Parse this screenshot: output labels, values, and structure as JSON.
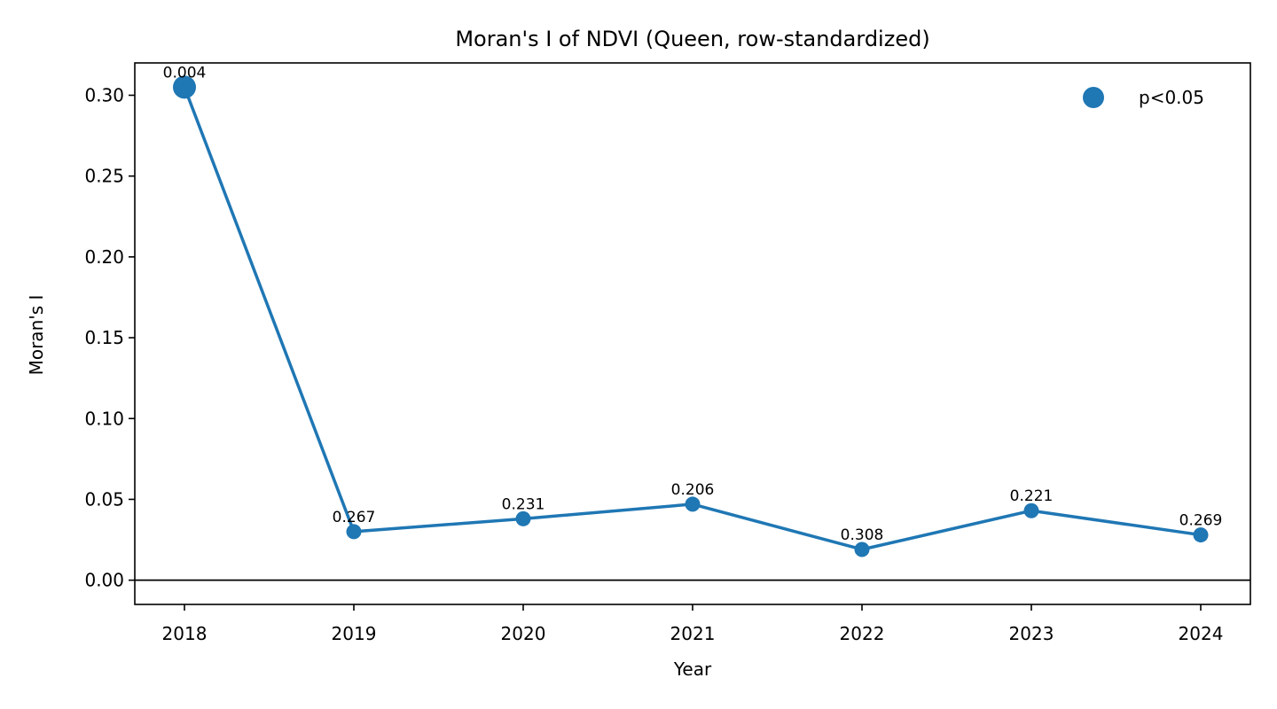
{
  "chart_data": {
    "type": "line",
    "title": "Moran's I of NDVI (Queen, row-standardized)",
    "xlabel": "Year",
    "ylabel": "Moran's I",
    "x": [
      "2018",
      "2019",
      "2020",
      "2021",
      "2022",
      "2023",
      "2024"
    ],
    "series": [
      {
        "name": "p<0.05",
        "values": [
          0.305,
          0.03,
          0.038,
          0.047,
          0.019,
          0.043,
          0.028
        ],
        "p_labels": [
          "0.004",
          "0.267",
          "0.231",
          "0.206",
          "0.308",
          "0.221",
          "0.269"
        ],
        "significant": [
          true,
          false,
          false,
          false,
          false,
          false,
          false
        ],
        "color": "#1f77b4"
      }
    ],
    "ylim": [
      -0.015,
      0.32
    ],
    "yticks": [
      "0.00",
      "0.05",
      "0.10",
      "0.15",
      "0.20",
      "0.25",
      "0.30"
    ],
    "reference_line_y": 0,
    "legend_position": "top-right",
    "grid": false
  }
}
